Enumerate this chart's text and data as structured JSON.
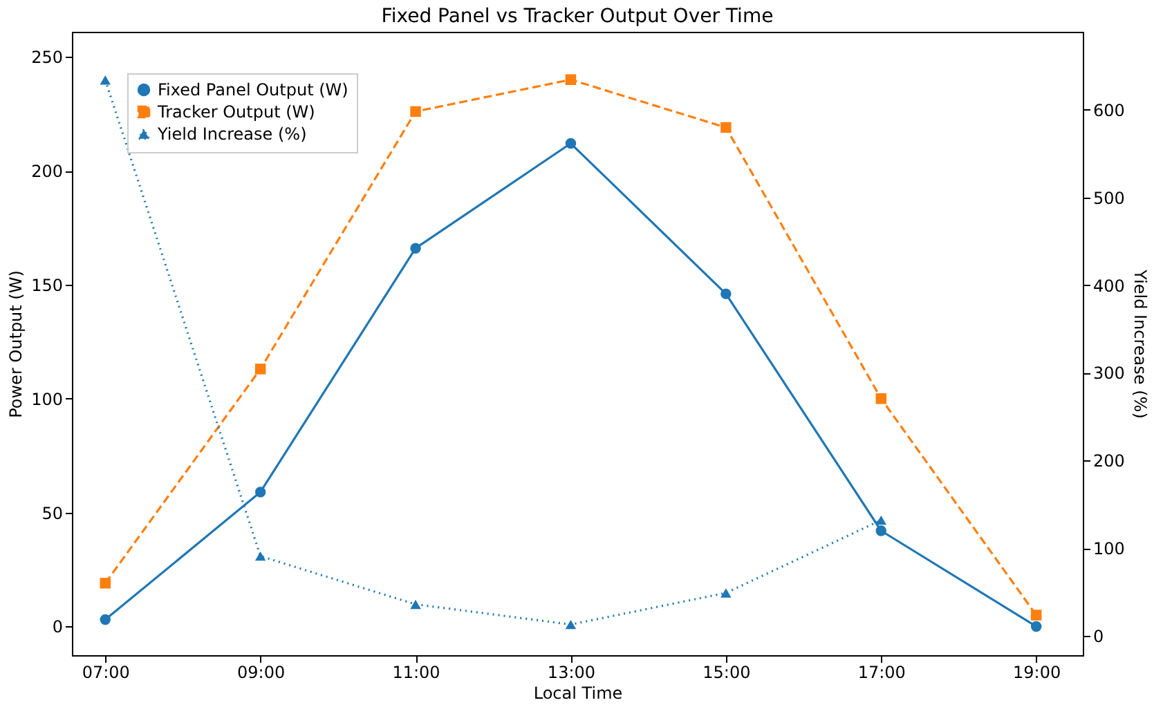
{
  "chart_data": {
    "type": "line",
    "title": "Fixed Panel vs Tracker Output Over Time",
    "xlabel": "Local Time",
    "ylabel": "Power Output (W)",
    "y2label": "Yield Increase (%)",
    "x": [
      7,
      9,
      11,
      13,
      15,
      17,
      19
    ],
    "xlim": [
      6.57,
      19.6
    ],
    "xticks": [
      {
        "value": 7,
        "label": "07:00"
      },
      {
        "value": 9,
        "label": "09:00"
      },
      {
        "value": 11,
        "label": "11:00"
      },
      {
        "value": 13,
        "label": "13:00"
      },
      {
        "value": 15,
        "label": "15:00"
      },
      {
        "value": 17,
        "label": "17:00"
      },
      {
        "value": 19,
        "label": "19:00"
      }
    ],
    "ylim": [
      -12.6,
      261
    ],
    "yticks": [
      0,
      50,
      100,
      150,
      200,
      250
    ],
    "y2lim": [
      -22,
      689
    ],
    "y2ticks": [
      0,
      100,
      200,
      300,
      400,
      500,
      600
    ],
    "series": [
      {
        "name": "Fixed Panel Output (W)",
        "color": "#1f77b4",
        "marker": "circle",
        "line_style": "solid",
        "values": [
          3,
          59,
          166,
          212,
          146,
          42,
          0
        ]
      },
      {
        "name": "Tracker Output (W)",
        "color": "#ff7f0e",
        "marker": "square",
        "line_style": "dashed",
        "values": [
          19,
          113,
          226,
          240,
          219,
          100,
          5
        ]
      },
      {
        "name": "Yield Increase (%)",
        "color": "#1f77b4",
        "marker": "triangle",
        "line_style": "dotted",
        "axis": "y2",
        "values": [
          634,
          91,
          36,
          13,
          49,
          132,
          null
        ]
      }
    ],
    "grid": false,
    "legend": "top left"
  }
}
